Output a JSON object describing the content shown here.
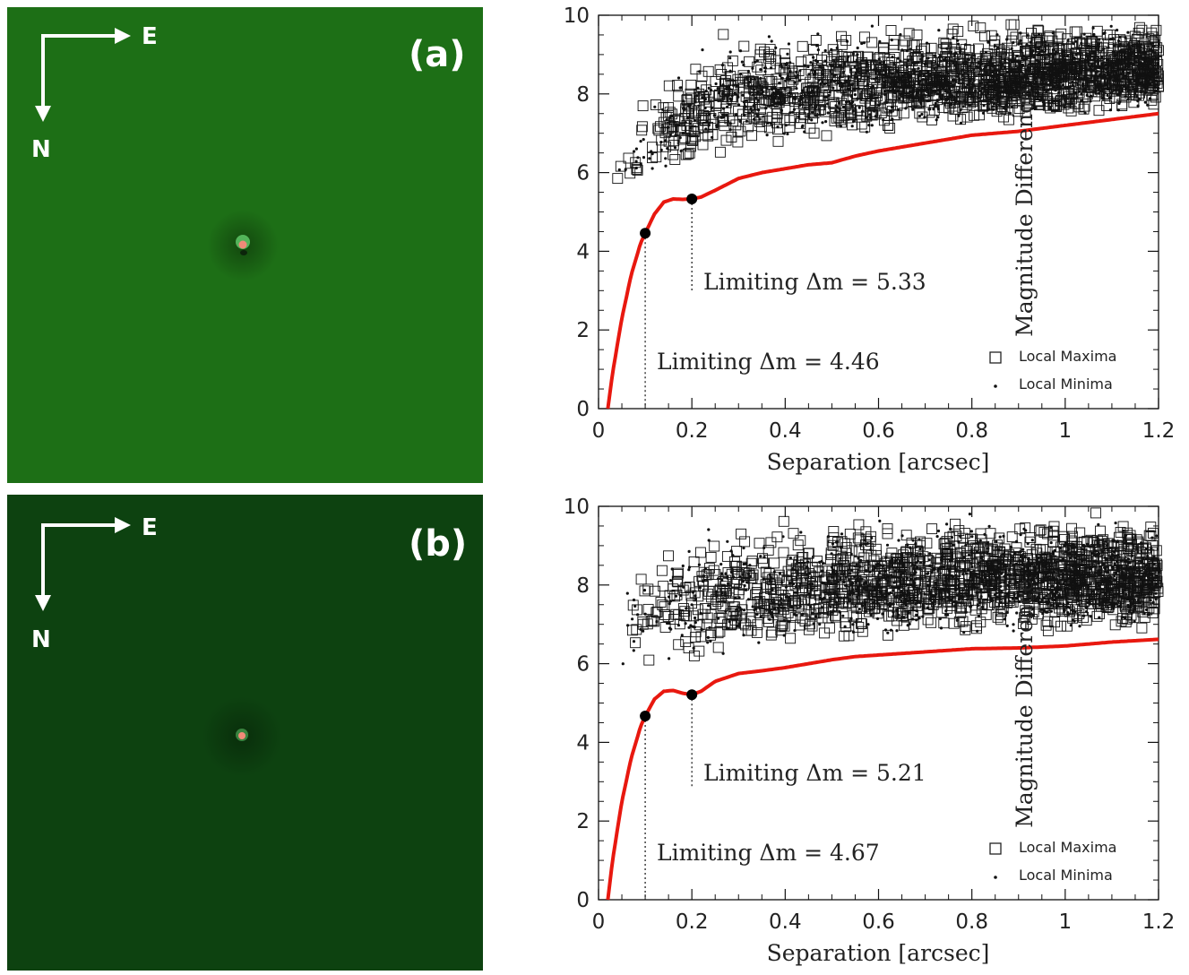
{
  "panels": [
    {
      "label": "(a)",
      "compass_e": "E",
      "compass_n": "N",
      "bg_color": "#1d6f16",
      "star_color": "#f08a78"
    },
    {
      "label": "(b)",
      "compass_e": "E",
      "compass_n": "N",
      "bg_color": "#0d4210",
      "star_color": "#f08a78"
    }
  ],
  "chart_data": [
    {
      "type": "scatter",
      "xlabel": "Separation  [arcsec]",
      "ylabel": "Magnitude Difference",
      "xlim": [
        0,
        1.2
      ],
      "ylim": [
        0,
        10
      ],
      "xticks": [
        "0",
        "0.2",
        "0.4",
        "0.6",
        "0.8",
        "1",
        "1.2"
      ],
      "yticks": [
        "0",
        "2",
        "4",
        "6",
        "8",
        "10"
      ],
      "legend": [
        "Local Maxima",
        "Local Minima"
      ],
      "legend_position": "bottom-right",
      "contrast_curve": {
        "color": "#e8180f",
        "x": [
          0.02,
          0.03,
          0.05,
          0.07,
          0.09,
          0.1,
          0.12,
          0.14,
          0.16,
          0.18,
          0.2,
          0.22,
          0.25,
          0.3,
          0.35,
          0.4,
          0.45,
          0.5,
          0.55,
          0.6,
          0.7,
          0.8,
          0.9,
          1.0,
          1.1,
          1.2
        ],
        "y": [
          0.0,
          0.9,
          2.3,
          3.4,
          4.2,
          4.46,
          4.95,
          5.25,
          5.33,
          5.32,
          5.33,
          5.38,
          5.55,
          5.85,
          6.0,
          6.1,
          6.2,
          6.25,
          6.42,
          6.55,
          6.75,
          6.95,
          7.05,
          7.2,
          7.35,
          7.5
        ]
      },
      "limits": [
        {
          "x": 0.1,
          "y": 4.46,
          "label": "Limiting Δm = 4.46"
        },
        {
          "x": 0.2,
          "y": 5.33,
          "label": "Limiting Δm = 5.33"
        }
      ],
      "scatter_model": {
        "seed": 11,
        "lower_x": [
          0.05,
          0.1,
          0.2,
          0.3,
          0.5,
          0.7,
          0.9,
          1.2
        ],
        "lower_y": [
          5.6,
          5.9,
          6.2,
          6.6,
          6.8,
          7.1,
          7.3,
          7.6
        ],
        "upper_x": [
          0.05,
          0.1,
          0.2,
          0.3,
          0.5,
          0.7,
          0.9,
          1.2
        ],
        "upper_y": [
          7.0,
          8.0,
          9.2,
          9.8,
          10.0,
          10.0,
          10.0,
          10.0
        ],
        "n_max": 1500,
        "n_min": 1100
      }
    },
    {
      "type": "scatter",
      "xlabel": "Separation  [arcsec]",
      "ylabel": "Magnitude Difference",
      "xlim": [
        0,
        1.2
      ],
      "ylim": [
        0,
        10
      ],
      "xticks": [
        "0",
        "0.2",
        "0.4",
        "0.6",
        "0.8",
        "1",
        "1.2"
      ],
      "yticks": [
        "0",
        "2",
        "4",
        "6",
        "8",
        "10"
      ],
      "legend": [
        "Local Maxima",
        "Local Minima"
      ],
      "legend_position": "bottom-right",
      "contrast_curve": {
        "color": "#e8180f",
        "x": [
          0.02,
          0.03,
          0.05,
          0.07,
          0.09,
          0.1,
          0.12,
          0.14,
          0.16,
          0.18,
          0.2,
          0.22,
          0.25,
          0.3,
          0.35,
          0.4,
          0.45,
          0.5,
          0.55,
          0.6,
          0.7,
          0.8,
          0.9,
          1.0,
          1.1,
          1.2
        ],
        "y": [
          0.0,
          1.0,
          2.5,
          3.6,
          4.4,
          4.67,
          5.1,
          5.3,
          5.32,
          5.25,
          5.21,
          5.3,
          5.55,
          5.75,
          5.82,
          5.9,
          6.0,
          6.1,
          6.18,
          6.22,
          6.3,
          6.38,
          6.4,
          6.45,
          6.55,
          6.62
        ]
      },
      "limits": [
        {
          "x": 0.1,
          "y": 4.67,
          "label": "Limiting Δm = 4.67"
        },
        {
          "x": 0.2,
          "y": 5.21,
          "label": "Limiting Δm = 5.21"
        }
      ],
      "scatter_model": {
        "seed": 29,
        "lower_x": [
          0.05,
          0.1,
          0.2,
          0.3,
          0.5,
          0.7,
          0.9,
          1.2
        ],
        "lower_y": [
          5.6,
          5.8,
          5.9,
          6.2,
          6.5,
          6.7,
          6.8,
          6.9
        ],
        "upper_x": [
          0.05,
          0.1,
          0.2,
          0.3,
          0.5,
          0.7,
          0.9,
          1.2
        ],
        "upper_y": [
          8.2,
          9.0,
          9.8,
          10.0,
          10.0,
          10.0,
          10.0,
          10.0
        ],
        "n_max": 1500,
        "n_min": 1000
      }
    }
  ]
}
